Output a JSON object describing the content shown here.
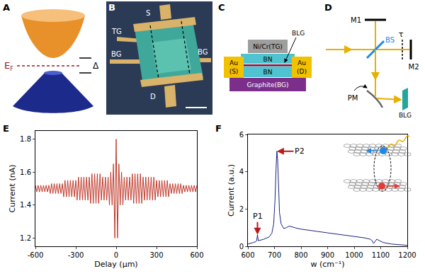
{
  "panels": {
    "A": {
      "label": "A",
      "fermi_label": "E",
      "fermi_subscript": "F",
      "gap_label": "Δ"
    },
    "B": {
      "label": "B",
      "top_gate": "TG",
      "source": "S",
      "back_gate_left": "BG",
      "back_gate_right": "BG",
      "drain": "D"
    },
    "C": {
      "label": "C",
      "top_gate": "Ni/Cr(TG)",
      "upper_bn": "BN",
      "lower_bn": "BN",
      "back_gate": "Graphite(BG)",
      "sample": "BLG",
      "source": [
        "Au",
        "(S)"
      ],
      "drain": [
        "Au",
        "(D)"
      ]
    },
    "D": {
      "label": "D",
      "mirror_1": "M1",
      "beam_splitter": "BS",
      "delay": "τ",
      "mirror_2": "M2",
      "parabolic_mirror": "PM",
      "sample": "BLG"
    }
  },
  "chart_data": [
    {
      "panel": "E",
      "type": "line",
      "x_label": "Delay (µm)",
      "y_label": "Current (nA)",
      "color": "#c0392b",
      "grid": false,
      "xlim": [
        -600,
        600
      ],
      "xticks": [
        -600,
        -300,
        0,
        300,
        600
      ],
      "ylim": [
        1.15,
        1.85
      ],
      "yticks": [
        1.2,
        1.4,
        1.6,
        1.8
      ],
      "x": [
        -600,
        -590,
        -580,
        -570,
        -560,
        -550,
        -540,
        -530,
        -520,
        -510,
        -500,
        -490,
        -480,
        -470,
        -460,
        -450,
        -440,
        -430,
        -420,
        -410,
        -400,
        -390,
        -380,
        -370,
        -360,
        -350,
        -340,
        -330,
        -320,
        -310,
        -300,
        -290,
        -280,
        -270,
        -260,
        -250,
        -240,
        -230,
        -220,
        -210,
        -200,
        -190,
        -180,
        -170,
        -160,
        -150,
        -140,
        -130,
        -120,
        -110,
        -100,
        -90,
        -80,
        -70,
        -60,
        -50,
        -40,
        -30,
        -20,
        -10,
        0,
        10,
        20,
        30,
        40,
        50,
        60,
        70,
        80,
        90,
        100,
        110,
        120,
        130,
        140,
        150,
        160,
        170,
        180,
        190,
        200,
        210,
        220,
        230,
        240,
        250,
        260,
        270,
        280,
        290,
        300,
        310,
        320,
        330,
        340,
        350,
        360,
        370,
        380,
        390,
        400,
        410,
        420,
        430,
        440,
        450,
        460,
        470,
        480,
        490,
        500,
        510,
        520,
        530,
        540,
        550,
        560,
        570,
        580,
        590,
        600
      ],
      "values": [
        1.52,
        1.48,
        1.52,
        1.48,
        1.52,
        1.48,
        1.52,
        1.48,
        1.52,
        1.48,
        1.52,
        1.47,
        1.53,
        1.47,
        1.53,
        1.47,
        1.53,
        1.47,
        1.53,
        1.47,
        1.53,
        1.45,
        1.55,
        1.45,
        1.55,
        1.45,
        1.55,
        1.45,
        1.55,
        1.45,
        1.55,
        1.43,
        1.57,
        1.43,
        1.57,
        1.43,
        1.57,
        1.43,
        1.57,
        1.43,
        1.57,
        1.41,
        1.59,
        1.41,
        1.59,
        1.41,
        1.59,
        1.41,
        1.59,
        1.43,
        1.57,
        1.43,
        1.57,
        1.43,
        1.57,
        1.4,
        1.6,
        1.4,
        1.65,
        1.2,
        1.8,
        1.2,
        1.65,
        1.4,
        1.6,
        1.4,
        1.57,
        1.43,
        1.57,
        1.43,
        1.57,
        1.43,
        1.59,
        1.41,
        1.59,
        1.41,
        1.59,
        1.41,
        1.59,
        1.41,
        1.57,
        1.43,
        1.57,
        1.43,
        1.57,
        1.43,
        1.57,
        1.43,
        1.57,
        1.43,
        1.55,
        1.45,
        1.55,
        1.45,
        1.55,
        1.45,
        1.55,
        1.45,
        1.55,
        1.45,
        1.53,
        1.47,
        1.53,
        1.47,
        1.53,
        1.47,
        1.53,
        1.47,
        1.53,
        1.47,
        1.52,
        1.48,
        1.52,
        1.48,
        1.52,
        1.48,
        1.52,
        1.48,
        1.52,
        1.48,
        1.52
      ]
    },
    {
      "panel": "F",
      "type": "line",
      "x_label": "w (cm⁻¹)",
      "y_label": "Current (a.u.)",
      "color": "#1a237e",
      "grid": false,
      "xlim": [
        600,
        1200
      ],
      "xticks": [
        600,
        700,
        800,
        900,
        1000,
        1100,
        1200
      ],
      "ylim": [
        0,
        6
      ],
      "yticks": [
        0,
        2,
        4,
        6
      ],
      "x": [
        600,
        610,
        620,
        630,
        633,
        636,
        639,
        645,
        660,
        680,
        690,
        697,
        702,
        706,
        709,
        712,
        715,
        719,
        725,
        735,
        745,
        755,
        765,
        780,
        800,
        830,
        860,
        900,
        950,
        1000,
        1040,
        1060,
        1068,
        1073,
        1078,
        1085,
        1095,
        1110,
        1140,
        1170,
        1200
      ],
      "values": [
        0.12,
        0.15,
        0.2,
        0.25,
        0.3,
        0.62,
        0.3,
        0.32,
        0.38,
        0.5,
        0.7,
        1.2,
        2.5,
        4.2,
        5.1,
        4.6,
        3.0,
        1.8,
        1.2,
        0.95,
        1.0,
        1.08,
        1.05,
        0.98,
        0.92,
        0.85,
        0.8,
        0.72,
        0.62,
        0.52,
        0.45,
        0.38,
        0.3,
        0.15,
        0.25,
        0.38,
        0.3,
        0.2,
        0.12,
        0.08,
        0.05
      ],
      "annotations": [
        {
          "text": "P1",
          "x": 636,
          "y": 0.62
        },
        {
          "text": "P2",
          "x": 709,
          "y": 5.1
        }
      ]
    }
  ]
}
